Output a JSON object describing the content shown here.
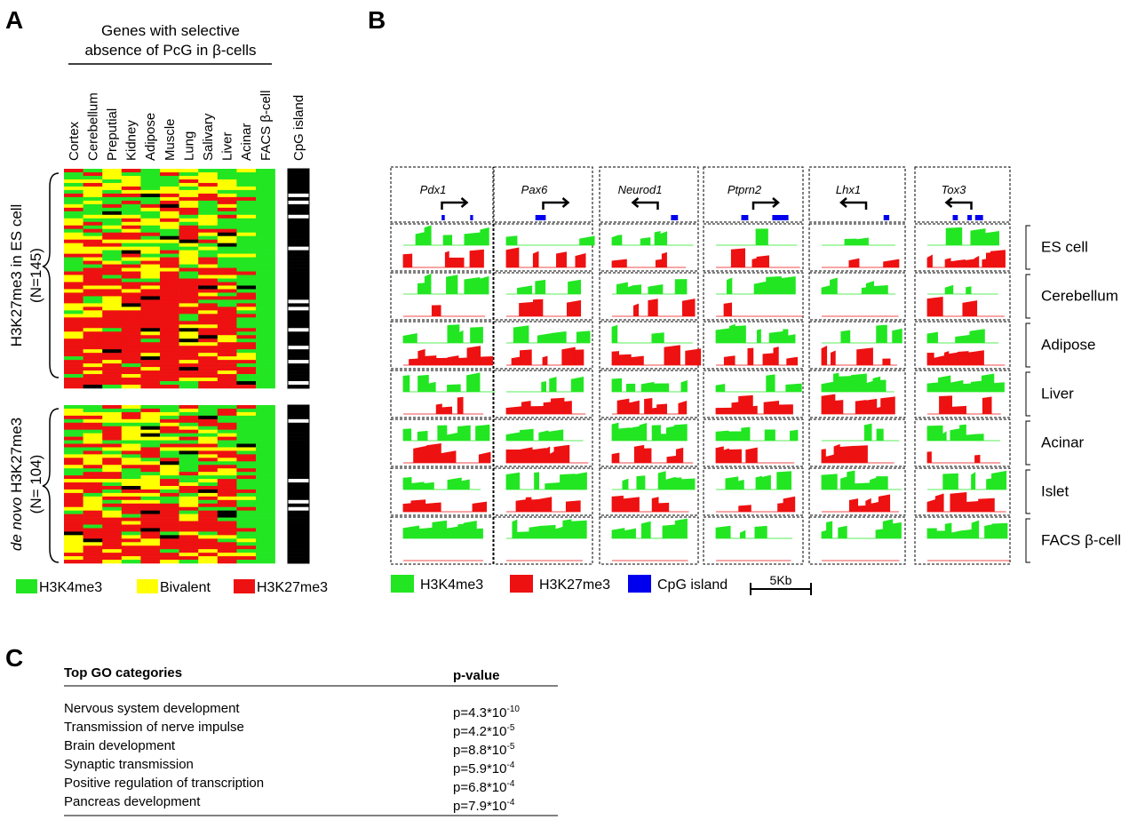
{
  "panel_a": {
    "label": "A",
    "header": [
      "Genes with selective",
      "absence of PcG in β-cells"
    ],
    "columns": [
      "Cortex",
      "Cerebellum",
      "Preputial",
      "Kidney",
      "Adipose",
      "Muscle",
      "Lung",
      "Salivary",
      "Liver",
      "Acinar",
      "FACS β-cell"
    ],
    "cpg_label": "CpG island",
    "group_top": [
      "H3K27me3 in ES cell",
      "(N=145)"
    ],
    "group_bottom": {
      "italic": "de novo",
      "text": " H3K27me3",
      "n": "(N= 104)"
    },
    "legend": [
      "H3K4me3",
      "Bivalent",
      "H3K27me3"
    ]
  },
  "panel_b": {
    "label": "B",
    "genes": [
      "Pdx1",
      "Pax6",
      "Neurod1",
      "Ptprn2",
      "Lhx1",
      "Tox3"
    ],
    "rows": [
      "ES cell",
      "Cerebellum",
      "Adipose",
      "Liver",
      "Acinar",
      "Islet",
      "FACS β-cell"
    ],
    "legend": [
      "H3K4me3",
      "H3K27me3",
      "CpG island"
    ],
    "scale": "5Kb"
  },
  "panel_c": {
    "label": "C",
    "header": [
      "Top GO categories",
      "p-value"
    ],
    "rows": [
      [
        "Nervous system development",
        {
          "base": "p=4.3*10",
          "exp": "-10"
        }
      ],
      [
        "Transmission of nerve impulse",
        {
          "base": "p=4.2*10",
          "exp": "-5"
        }
      ],
      [
        "Brain development",
        {
          "base": "p=8.8*10",
          "exp": "-5"
        }
      ],
      [
        "Synaptic transmission",
        {
          "base": "p=5.9*10",
          "exp": "-4"
        }
      ],
      [
        "Positive regulation of transcription",
        {
          "base": "p=6.8*10",
          "exp": "-4"
        }
      ],
      [
        "Pancreas development",
        {
          "base": "p=7.9*10",
          "exp": "-4"
        }
      ]
    ]
  }
}
